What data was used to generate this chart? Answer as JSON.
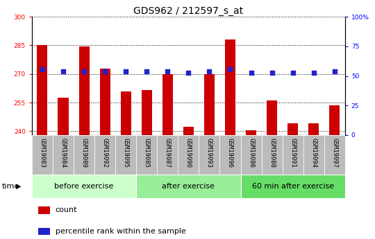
{
  "title": "GDS962 / 212597_s_at",
  "samples": [
    "GSM19083",
    "GSM19084",
    "GSM19089",
    "GSM19092",
    "GSM19095",
    "GSM19085",
    "GSM19087",
    "GSM19090",
    "GSM19093",
    "GSM19096",
    "GSM19086",
    "GSM19088",
    "GSM19091",
    "GSM19094",
    "GSM19097"
  ],
  "count_values": [
    285.0,
    257.5,
    284.5,
    273.0,
    261.0,
    261.5,
    270.0,
    242.5,
    270.0,
    288.0,
    240.5,
    256.0,
    244.0,
    244.0,
    253.5
  ],
  "percentile_values": [
    272.5,
    271.5,
    271.5,
    271.5,
    271.5,
    271.5,
    271.5,
    270.5,
    271.5,
    272.5,
    270.5,
    270.5,
    270.5,
    270.5,
    271.5
  ],
  "ylim_left": [
    238,
    300
  ],
  "yticks_left": [
    240,
    255,
    270,
    285,
    300
  ],
  "ytick_labels_left": [
    "240",
    "255",
    "270",
    "285",
    "300"
  ],
  "ylim_right": [
    0,
    100
  ],
  "yticks_right": [
    0,
    25,
    50,
    75,
    100
  ],
  "ytick_labels_right": [
    "0",
    "25",
    "50",
    "75",
    "100%"
  ],
  "bar_color": "#cc0000",
  "dot_color": "#2222cc",
  "groups": [
    {
      "label": "before exercise",
      "start": 0,
      "end": 5,
      "color": "#ccffcc"
    },
    {
      "label": "after exercise",
      "start": 5,
      "end": 10,
      "color": "#99ee99"
    },
    {
      "label": "60 min after exercise",
      "start": 10,
      "end": 15,
      "color": "#66dd66"
    }
  ],
  "tick_label_bg": "#bbbbbb",
  "bar_width": 0.5,
  "legend_count_label": "count",
  "legend_pct_label": "percentile rank within the sample",
  "time_label": "time",
  "title_fontsize": 10,
  "tick_fontsize": 6.5,
  "group_fontsize": 8,
  "legend_fontsize": 8
}
